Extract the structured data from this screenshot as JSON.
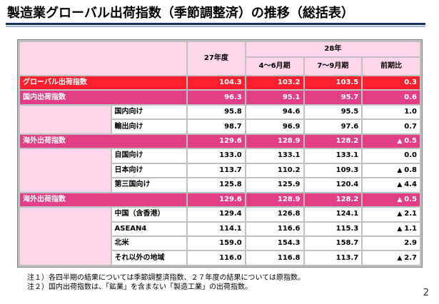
{
  "title": "製造業グローバル出荷指数（季節調整済）の推移（総括表）",
  "header": {
    "fy27": "27年度",
    "year28": "28年",
    "q_apr_jun": "4～6月期",
    "q_jul_sep": "7～9月期",
    "prev_ratio": "前期比"
  },
  "rows": [
    {
      "label": "グローバル出荷指数",
      "fy27": "104.3",
      "q1": "103.2",
      "q2": "103.5",
      "tri": "",
      "ratio": "0.3"
    },
    {
      "label": "国内出荷指数",
      "fy27": "96.3",
      "q1": "95.1",
      "q2": "95.7",
      "tri": "",
      "ratio": "0.6"
    },
    {
      "label": "国内向け",
      "fy27": "95.8",
      "q1": "94.6",
      "q2": "95.5",
      "tri": "",
      "ratio": "1.0"
    },
    {
      "label": "輸出向け",
      "fy27": "98.7",
      "q1": "96.9",
      "q2": "97.6",
      "tri": "",
      "ratio": "0.7"
    },
    {
      "label": "海外出荷指数",
      "fy27": "129.6",
      "q1": "128.9",
      "q2": "128.2",
      "tri": "▲",
      "ratio": "0.5"
    },
    {
      "label": "自国向け",
      "fy27": "133.0",
      "q1": "133.1",
      "q2": "133.1",
      "tri": "",
      "ratio": "0.0"
    },
    {
      "label": "日本向け",
      "fy27": "113.7",
      "q1": "110.2",
      "q2": "109.3",
      "tri": "▲",
      "ratio": "0.8"
    },
    {
      "label": "第三国向け",
      "fy27": "125.8",
      "q1": "125.9",
      "q2": "120.4",
      "tri": "▲",
      "ratio": "4.4"
    },
    {
      "label": "海外出荷指数",
      "fy27": "129.6",
      "q1": "128.9",
      "q2": "128.2",
      "tri": "▲",
      "ratio": "0.5"
    },
    {
      "label": "中国（含香港）",
      "fy27": "129.4",
      "q1": "126.8",
      "q2": "124.1",
      "tri": "▲",
      "ratio": "2.1"
    },
    {
      "label": "ASEAN4",
      "fy27": "114.1",
      "q1": "116.6",
      "q2": "115.3",
      "tri": "▲",
      "ratio": "1.1"
    },
    {
      "label": "北米",
      "fy27": "159.0",
      "q1": "154.3",
      "q2": "158.7",
      "tri": "",
      "ratio": "2.9"
    },
    {
      "label": "それ以外の地域",
      "fy27": "116.0",
      "q1": "116.8",
      "q2": "113.7",
      "tri": "▲",
      "ratio": "2.7"
    }
  ],
  "notes": [
    "注１）各四半期の結果については季節調整済指数、２７年度の結果については原指数。",
    "注２）国内出荷指数は、「鉱業」を含まない「製造工業」の出荷指数。"
  ],
  "page_number": "2",
  "colors": {
    "title_rule": "#17365d",
    "pink_fill": "#ffd7e9",
    "section_fill": "#e33f86",
    "global_row_fill": "#ff1f2e"
  }
}
